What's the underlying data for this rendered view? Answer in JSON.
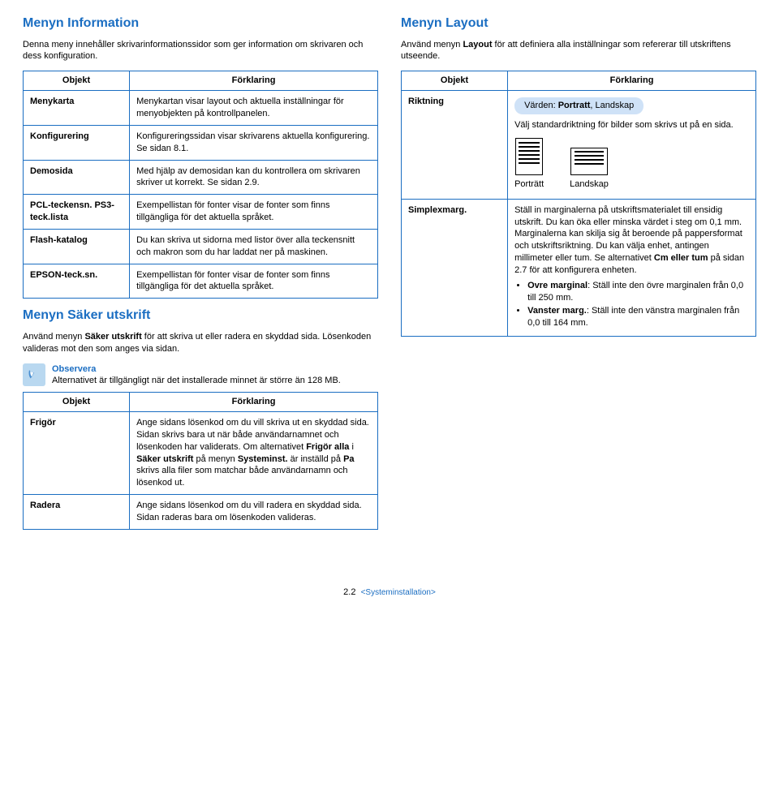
{
  "left": {
    "info": {
      "title": "Menyn Information",
      "intro": "Denna meny innehåller skrivarinformationssidor som ger information om skrivaren och dess konfiguration.",
      "table": {
        "head": {
          "c1": "Objekt",
          "c2": "Förklaring"
        },
        "rows": [
          {
            "label": "Menykarta",
            "body": "Menykartan visar layout och aktuella inställningar för menyobjekten på kontrollpanelen."
          },
          {
            "label": "Konfigurering",
            "body": "Konfigureringssidan visar skrivarens aktuella konfigurering. Se sidan 8.1."
          },
          {
            "label": "Demosida",
            "body": "Med hjälp av demosidan kan du kontrollera om skrivaren skriver ut korrekt. Se sidan 2.9."
          },
          {
            "label": "PCL-teckensn. PS3-teck.lista",
            "body": "Exempellistan för fonter visar de fonter som finns tillgängliga för det aktuella språket."
          },
          {
            "label": "Flash-katalog",
            "body": "Du kan skriva ut sidorna med listor över alla teckensnitt och makron som du har laddat ner på maskinen."
          },
          {
            "label": "EPSON-teck.sn.",
            "body": "Exempellistan för fonter visar de fonter som finns tillgängliga för det aktuella språket."
          }
        ]
      }
    },
    "secure": {
      "title": "Menyn Säker utskrift",
      "intro_html": "Använd menyn <b>Säker utskrift</b> för att skriva ut eller radera en skyddad sida. Lösenkoden valideras mot den som anges via sidan.",
      "note": {
        "heading": "Observera",
        "body": "Alternativet är tillgängligt när det installerade minnet är större än 128 MB."
      },
      "table": {
        "head": {
          "c1": "Objekt",
          "c2": "Förklaring"
        },
        "rows": [
          {
            "label": "Frigör",
            "body_html": "Ange sidans lösenkod om du vill skriva ut en skyddad sida. Sidan skrivs bara ut när både användarnamnet och lösenkoden har validerats. Om alternativet <b>Frigör alla</b> i <b>Säker utskrift</b> på menyn <b>Systeminst.</b> är inställd på <b>Pa</b> skrivs alla filer som matchar både användarnamn och lösenkod ut."
          },
          {
            "label": "Radera",
            "body": "Ange sidans lösenkod om du vill radera en skyddad sida. Sidan raderas bara om lösenkoden valideras."
          }
        ]
      }
    }
  },
  "right": {
    "layout": {
      "title": "Menyn Layout",
      "intro_html": "Använd menyn <b>Layout</b> för att definiera alla inställningar som refererar till utskriftens utseende.",
      "table": {
        "head": {
          "c1": "Objekt",
          "c2": "Förklaring"
        },
        "riktning": {
          "label": "Riktning",
          "pill_html": "Värden: <b>Portratt</b>, Landskap",
          "body": "Välj standardriktning för bilder som skrivs ut på en sida.",
          "portrait_label": "Porträtt",
          "landscape_label": "Landskap"
        },
        "simplex": {
          "label": "Simplexmarg.",
          "body_html": "Ställ in marginalerna på utskriftsmaterialet till ensidig utskrift. Du kan öka eller minska värdet i steg om 0,1 mm. Marginalerna kan skilja sig åt beroende på pappersformat och utskriftsriktning. Du kan välja enhet, antingen millimeter eller tum. Se alternativet <b>Cm eller tum</b> på sidan 2.7 för att konfigurera enheten.",
          "bullets": [
            "<b>Ovre marginal</b>: Ställ inte den övre marginalen från 0,0 till 250 mm.",
            "<b>Vanster marg.</b>: Ställ inte den vänstra marginalen från 0,0 till 164 mm."
          ]
        }
      }
    }
  },
  "footer": {
    "page": "2.2",
    "section": "<Systeminstallation>"
  }
}
